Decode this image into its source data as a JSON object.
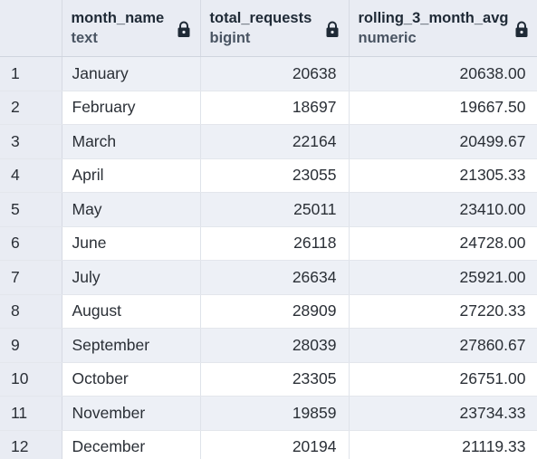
{
  "columns": [
    {
      "name": "month_name",
      "type": "text"
    },
    {
      "name": "total_requests",
      "type": "bigint"
    },
    {
      "name": "rolling_3_month_avg",
      "type": "numeric"
    }
  ],
  "rows": [
    {
      "n": "1",
      "month_name": "January",
      "total_requests": "20638",
      "rolling_3_month_avg": "20638.00"
    },
    {
      "n": "2",
      "month_name": "February",
      "total_requests": "18697",
      "rolling_3_month_avg": "19667.50"
    },
    {
      "n": "3",
      "month_name": "March",
      "total_requests": "22164",
      "rolling_3_month_avg": "20499.67"
    },
    {
      "n": "4",
      "month_name": "April",
      "total_requests": "23055",
      "rolling_3_month_avg": "21305.33"
    },
    {
      "n": "5",
      "month_name": "May",
      "total_requests": "25011",
      "rolling_3_month_avg": "23410.00"
    },
    {
      "n": "6",
      "month_name": "June",
      "total_requests": "26118",
      "rolling_3_month_avg": "24728.00"
    },
    {
      "n": "7",
      "month_name": "July",
      "total_requests": "26634",
      "rolling_3_month_avg": "25921.00"
    },
    {
      "n": "8",
      "month_name": "August",
      "total_requests": "28909",
      "rolling_3_month_avg": "27220.33"
    },
    {
      "n": "9",
      "month_name": "September",
      "total_requests": "28039",
      "rolling_3_month_avg": "27860.67"
    },
    {
      "n": "10",
      "month_name": "October",
      "total_requests": "23305",
      "rolling_3_month_avg": "26751.00"
    },
    {
      "n": "11",
      "month_name": "November",
      "total_requests": "19859",
      "rolling_3_month_avg": "23734.33"
    },
    {
      "n": "12",
      "month_name": "December",
      "total_requests": "20194",
      "rolling_3_month_avg": "21119.33"
    }
  ],
  "icons": {
    "column_lock": "lock-icon"
  },
  "colors": {
    "header_bg": "#e9ecf3",
    "stripe_bg": "#edf0f6",
    "text": "#2a2f36"
  }
}
